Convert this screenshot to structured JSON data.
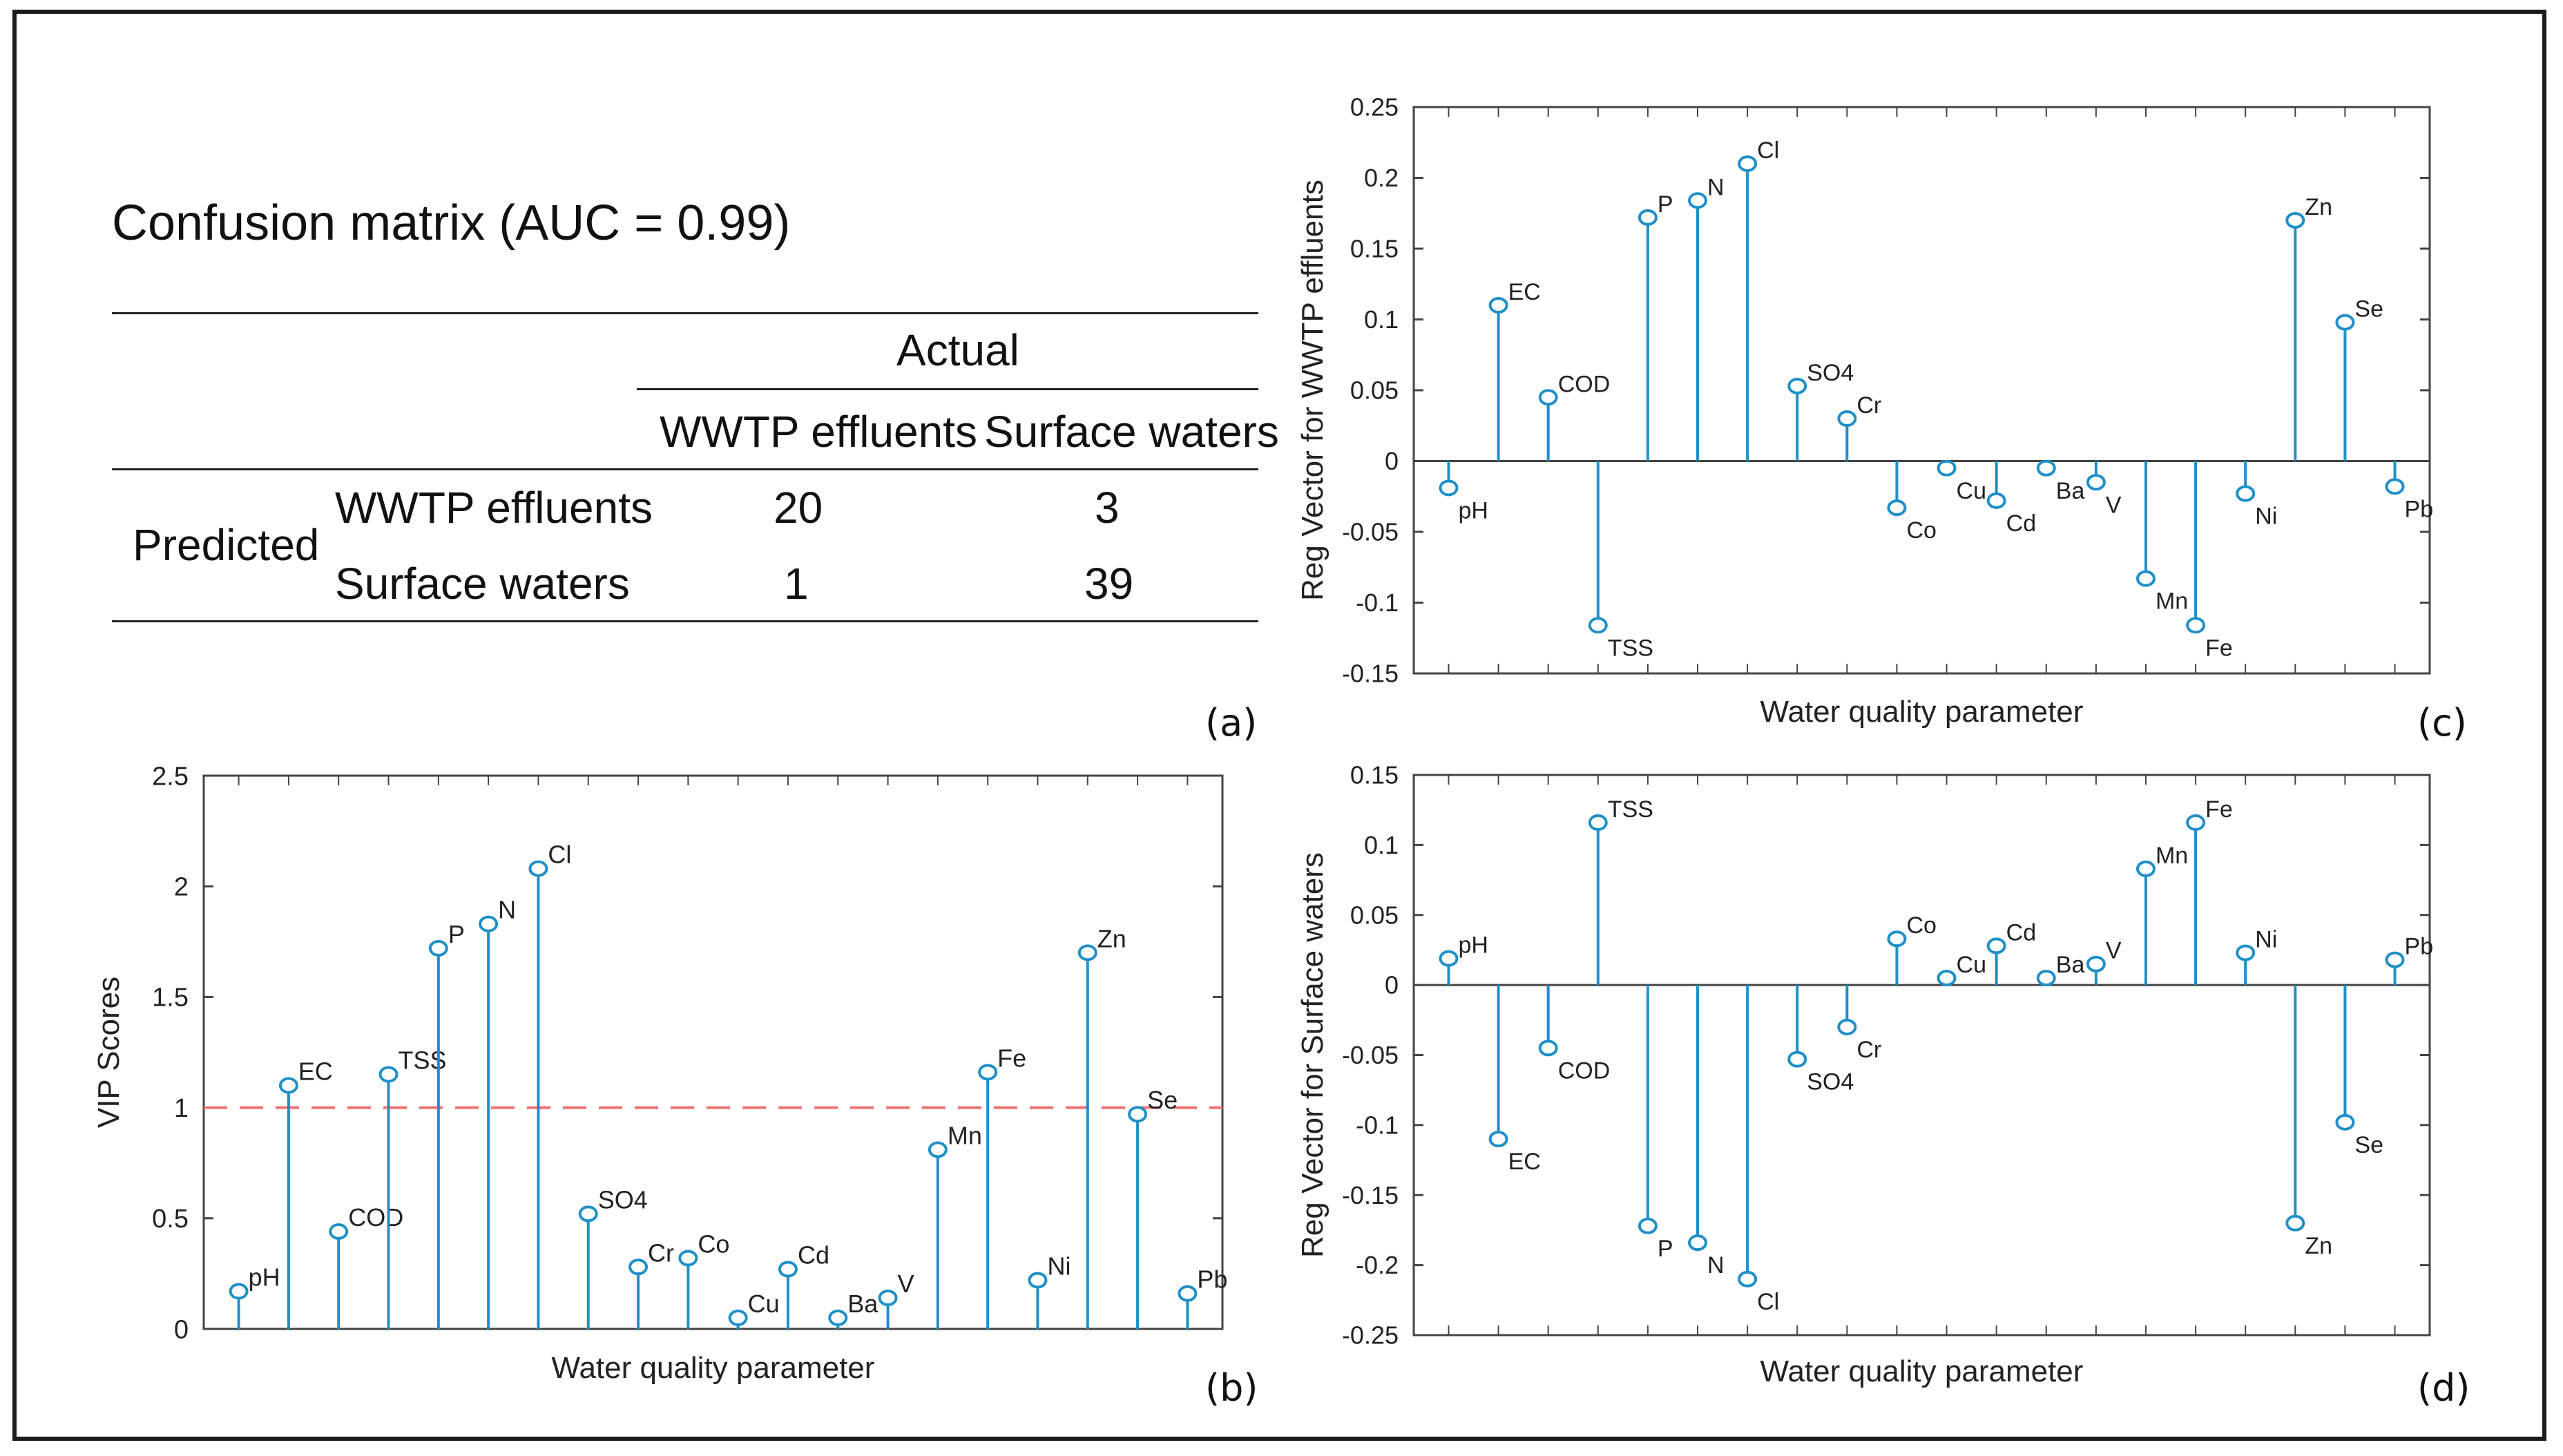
{
  "panels": {
    "a": "(a)",
    "b": "(b)",
    "c": "(c)",
    "d": "(d)"
  },
  "confusion": {
    "title": "Confusion matrix (AUC = 0.99)",
    "actual_label": "Actual",
    "predicted_label": "Predicted",
    "col_headers": [
      "WWTP effluents",
      "Surface waters"
    ],
    "row_headers": [
      "WWTP effluents",
      "Surface waters"
    ],
    "values": [
      [
        "20",
        "3"
      ],
      [
        "1",
        "39"
      ]
    ]
  },
  "colors": {
    "stem": "#1f8fc8",
    "threshold": "#f07070",
    "axis": "#444444"
  },
  "chart_data": [
    {
      "id": "vip",
      "type": "stem",
      "panel": "(b)",
      "xlabel": "Water quality parameter",
      "ylabel": "VIP Scores",
      "ylim": [
        0,
        2.5
      ],
      "yticks": [
        "0",
        "0.5",
        "1",
        "1.5",
        "2",
        "2.5"
      ],
      "threshold": 1,
      "categories": [
        "pH",
        "EC",
        "COD",
        "TSS",
        "P",
        "N",
        "Cl",
        "SO4",
        "Cr",
        "Co",
        "Cu",
        "Cd",
        "Ba",
        "V",
        "Mn",
        "Fe",
        "Ni",
        "Zn",
        "Se",
        "Pb"
      ],
      "values": [
        0.17,
        1.1,
        0.44,
        1.15,
        1.72,
        1.83,
        2.08,
        0.52,
        0.28,
        0.32,
        0.05,
        0.27,
        0.05,
        0.14,
        0.81,
        1.16,
        0.22,
        1.7,
        0.97,
        0.16
      ]
    },
    {
      "id": "reg-wwtp",
      "type": "stem",
      "panel": "(c)",
      "xlabel": "Water quality parameter",
      "ylabel": "Reg Vector for WWTP effluents",
      "ylim": [
        -0.15,
        0.25
      ],
      "yticks": [
        "-0.15",
        "-0.1",
        "-0.05",
        "0",
        "0.05",
        "0.1",
        "0.15",
        "0.2",
        "0.25"
      ],
      "categories": [
        "pH",
        "EC",
        "COD",
        "TSS",
        "P",
        "N",
        "Cl",
        "SO4",
        "Cr",
        "Co",
        "Cu",
        "Cd",
        "Ba",
        "V",
        "Mn",
        "Fe",
        "Ni",
        "Zn",
        "Se",
        "Pb"
      ],
      "values": [
        -0.019,
        0.11,
        0.045,
        -0.116,
        0.172,
        0.184,
        0.21,
        0.053,
        0.03,
        -0.033,
        -0.005,
        -0.028,
        -0.005,
        -0.015,
        -0.083,
        -0.116,
        -0.023,
        0.17,
        0.098,
        -0.018
      ]
    },
    {
      "id": "reg-surface",
      "type": "stem",
      "panel": "(d)",
      "xlabel": "Water quality parameter",
      "ylabel": "Reg Vector for Surface waters",
      "ylim": [
        -0.25,
        0.15
      ],
      "yticks": [
        "-0.25",
        "-0.2",
        "-0.15",
        "-0.1",
        "-0.05",
        "0",
        "0.05",
        "0.1",
        "0.15"
      ],
      "categories": [
        "pH",
        "EC",
        "COD",
        "TSS",
        "P",
        "N",
        "Cl",
        "SO4",
        "Cr",
        "Co",
        "Cu",
        "Cd",
        "Ba",
        "V",
        "Mn",
        "Fe",
        "Ni",
        "Zn",
        "Se",
        "Pb"
      ],
      "values": [
        0.019,
        -0.11,
        -0.045,
        0.116,
        -0.172,
        -0.184,
        -0.21,
        -0.053,
        -0.03,
        0.033,
        0.005,
        0.028,
        0.005,
        0.015,
        0.083,
        0.116,
        0.023,
        -0.17,
        -0.098,
        0.018
      ]
    }
  ]
}
